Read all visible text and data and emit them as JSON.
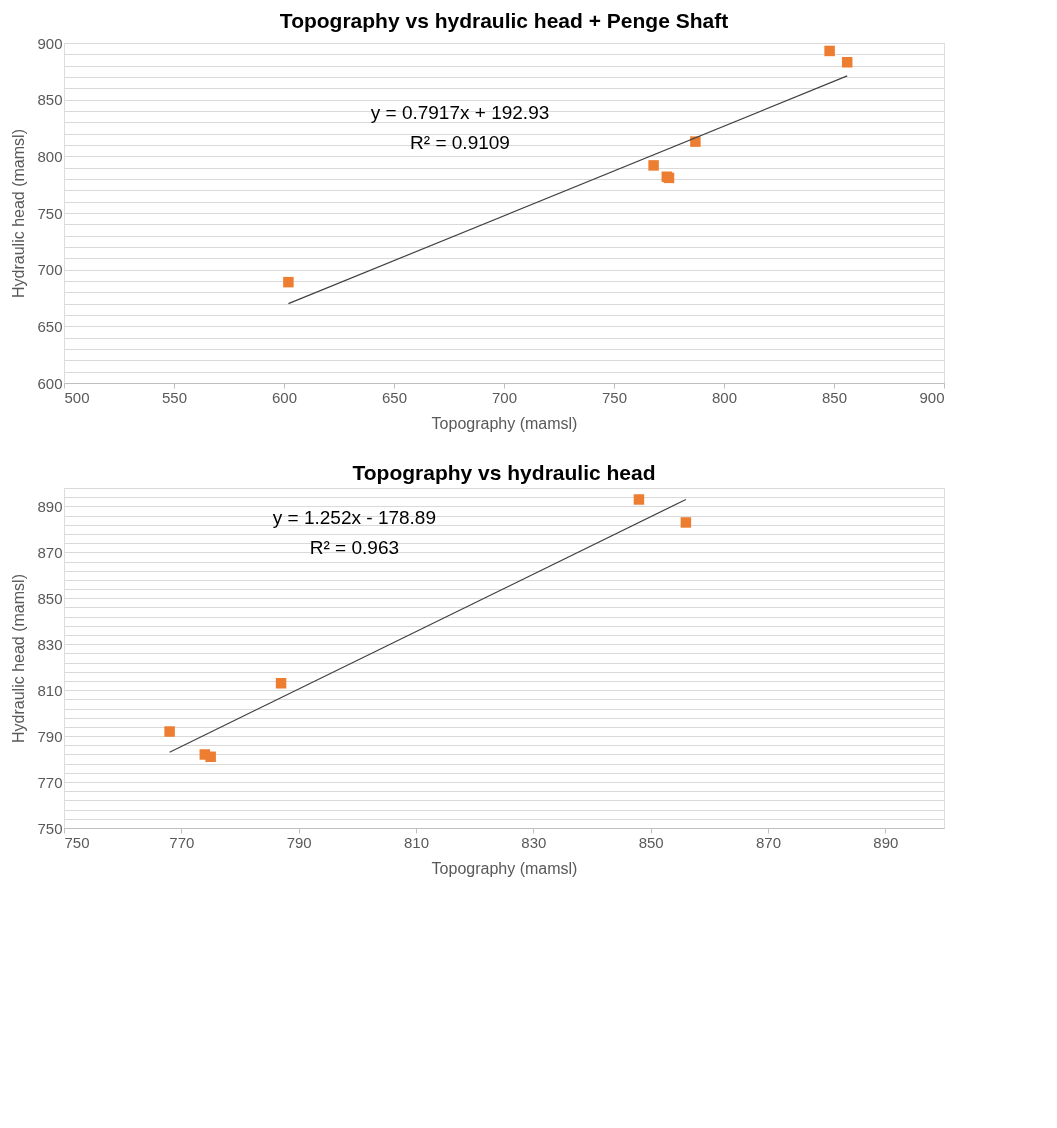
{
  "chart_data": [
    {
      "type": "scatter",
      "title": "Topography vs hydraulic head + Penge Shaft",
      "xlabel": "Topography (mamsl)",
      "ylabel": "Hydraulic head (mamsl)",
      "grid": "y",
      "xlim": [
        500,
        900
      ],
      "xticks": [
        500,
        550,
        600,
        650,
        700,
        750,
        800,
        850,
        900
      ],
      "ylim": [
        600,
        900
      ],
      "yticks": [
        600,
        {
          "value": 610,
          "label": null
        },
        {
          "value": 620,
          "label": null
        },
        {
          "value": 630,
          "label": null
        },
        {
          "value": 640,
          "label": null
        },
        650,
        {
          "value": 660,
          "label": null
        },
        {
          "value": 670,
          "label": null
        },
        {
          "value": 680,
          "label": null
        },
        {
          "value": 690,
          "label": null
        },
        700,
        {
          "value": 710,
          "label": null
        },
        {
          "value": 720,
          "label": null
        },
        {
          "value": 730,
          "label": null
        },
        {
          "value": 740,
          "label": null
        },
        750,
        {
          "value": 760,
          "label": null
        },
        {
          "value": 770,
          "label": null
        },
        {
          "value": 780,
          "label": null
        },
        {
          "value": 790,
          "label": null
        },
        800,
        {
          "value": 810,
          "label": null
        },
        {
          "value": 820,
          "label": null
        },
        {
          "value": 830,
          "label": null
        },
        {
          "value": 840,
          "label": null
        },
        850,
        {
          "value": 860,
          "label": null
        },
        {
          "value": 870,
          "label": null
        },
        {
          "value": 880,
          "label": null
        },
        {
          "value": 890,
          "label": null
        },
        900
      ],
      "series": [
        {
          "marker": "square",
          "color": "#ed7d31",
          "x": [
            602,
            768,
            774,
            775,
            787,
            848,
            856
          ],
          "values": [
            689,
            792,
            782,
            781,
            813,
            893,
            883
          ]
        },
        {
          "type": "line",
          "line_style": "solid",
          "color": "#404040",
          "x": [
            602,
            856
          ],
          "values": [
            670,
            871
          ]
        }
      ],
      "annotations": [
        "y = 0.7917x + 192.93",
        "R² = 0.9109"
      ]
    },
    {
      "type": "scatter",
      "title": "Topography vs hydraulic head",
      "xlabel": "Topography (mamsl)",
      "ylabel": "Hydraulic head (mamsl)",
      "grid": "y",
      "xlim": [
        750,
        900
      ],
      "xticks": [
        750,
        770,
        790,
        810,
        830,
        850,
        870,
        890
      ],
      "ylim": [
        750,
        898
      ],
      "yticks": [
        750,
        {
          "value": 754,
          "label": null
        },
        {
          "value": 758,
          "label": null
        },
        {
          "value": 762,
          "label": null
        },
        {
          "value": 766,
          "label": null
        },
        770,
        {
          "value": 774,
          "label": null
        },
        {
          "value": 778,
          "label": null
        },
        {
          "value": 782,
          "label": null
        },
        {
          "value": 786,
          "label": null
        },
        790,
        {
          "value": 794,
          "label": null
        },
        {
          "value": 798,
          "label": null
        },
        {
          "value": 802,
          "label": null
        },
        {
          "value": 806,
          "label": null
        },
        810,
        {
          "value": 814,
          "label": null
        },
        {
          "value": 818,
          "label": null
        },
        {
          "value": 822,
          "label": null
        },
        {
          "value": 826,
          "label": null
        },
        830,
        {
          "value": 834,
          "label": null
        },
        {
          "value": 838,
          "label": null
        },
        {
          "value": 842,
          "label": null
        },
        {
          "value": 846,
          "label": null
        },
        850,
        {
          "value": 854,
          "label": null
        },
        {
          "value": 858,
          "label": null
        },
        {
          "value": 862,
          "label": null
        },
        {
          "value": 866,
          "label": null
        },
        870,
        {
          "value": 874,
          "label": null
        },
        {
          "value": 878,
          "label": null
        },
        {
          "value": 882,
          "label": null
        },
        {
          "value": 886,
          "label": null
        },
        890,
        {
          "value": 894,
          "label": null
        },
        {
          "value": 898,
          "label": null
        }
      ],
      "series": [
        {
          "marker": "square",
          "color": "#ed7d31",
          "x": [
            768,
            774,
            775,
            787,
            848,
            856
          ],
          "values": [
            792,
            782,
            781,
            813,
            893,
            883
          ]
        },
        {
          "type": "line",
          "line_style": "solid",
          "color": "#404040",
          "x": [
            768,
            856
          ],
          "values": [
            783,
            893
          ]
        }
      ],
      "annotations": [
        "y = 1.252x - 178.89",
        "R² = 0.963"
      ]
    }
  ]
}
